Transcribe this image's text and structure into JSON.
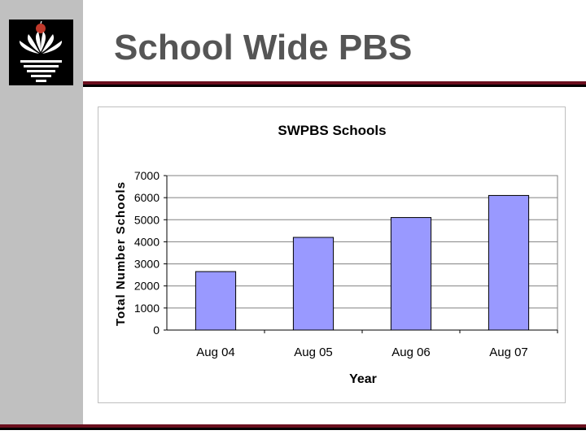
{
  "slide": {
    "title": "School Wide PBS"
  },
  "logo": {
    "name": "school-district-logo"
  },
  "colors": {
    "sidebar": "#c0c0c0",
    "title_text": "#555555",
    "rule_red": "#6b0f1e",
    "rule_black": "#000000",
    "bar_fill": "#9999ff",
    "apple_red": "#c0392b"
  },
  "chart_data": {
    "type": "bar",
    "title": "SWPBS Schools",
    "xlabel": "Year",
    "ylabel": "Total Number Schools",
    "categories": [
      "Aug 04",
      "Aug 05",
      "Aug 06",
      "Aug 07"
    ],
    "values": [
      2650,
      4200,
      5100,
      6100
    ],
    "ylim": [
      0,
      7000
    ],
    "yticks": [
      0,
      1000,
      2000,
      3000,
      4000,
      5000,
      6000,
      7000
    ],
    "grid": true,
    "legend": false
  }
}
